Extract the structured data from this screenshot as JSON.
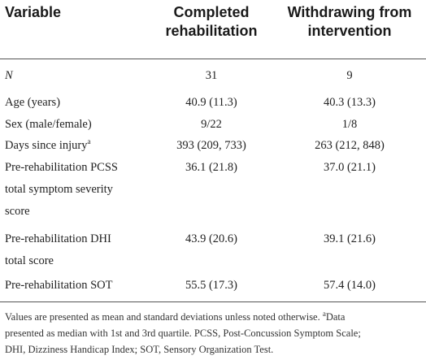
{
  "headers": {
    "variable": "Variable",
    "completed": "Completed rehabilitation",
    "withdrawing": "Withdrawing from intervention"
  },
  "rows": [
    {
      "label": "N",
      "completed": "31",
      "withdrawing": "9"
    },
    {
      "label": "Age (years)",
      "completed": "40.9 (11.3)",
      "withdrawing": "40.3 (13.3)"
    },
    {
      "label": "Sex (male/female)",
      "completed": "9/22",
      "withdrawing": "1/8"
    },
    {
      "label": "Days since injury",
      "label_sup": "a",
      "completed": "393 (209, 733)",
      "withdrawing": "263 (212, 848)"
    },
    {
      "label_lines": [
        "Pre-rehabilitation PCSS",
        "total symptom severity",
        "score"
      ],
      "completed": "36.1 (21.8)",
      "withdrawing": "37.0 (21.1)"
    },
    {
      "label_lines": [
        "Pre-rehabilitation DHI",
        "total score"
      ],
      "completed": "43.9 (20.6)",
      "withdrawing": "39.1 (21.6)"
    },
    {
      "label": "Pre-rehabilitation SOT",
      "completed": "55.5 (17.3)",
      "withdrawing": "57.4 (14.0)"
    }
  ],
  "footnote": {
    "line1_a": "Values are presented as mean and standard deviations unless noted otherwise.",
    "line1_sup": "a",
    "line1_b": "Data",
    "line2": "presented as median with 1st and 3rd quartile. PCSS, Post-Concussion Symptom Scale;",
    "line3": "DHI, Dizziness Handicap Index; SOT, Sensory Organization Test."
  }
}
